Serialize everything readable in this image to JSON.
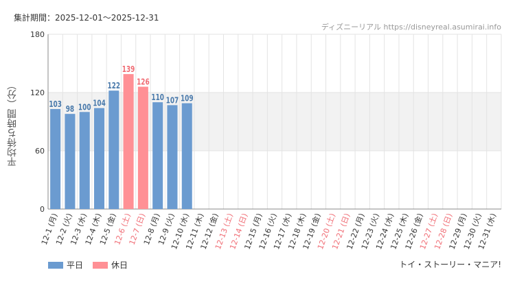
{
  "header": {
    "period": "集計期間：2025-12-01～2025-12-31",
    "watermark": "ディズニーリアル https://disneyreal.asumirai.info"
  },
  "footer": {
    "attraction": "トイ・ストーリー・マニア!"
  },
  "colors": {
    "weekday": "#6b9bd0",
    "holiday": "#ff9095",
    "weekday_label": "#4a7aab",
    "holiday_label": "#f06c74",
    "band": "#f2f2f2",
    "grid": "#e3e3e3",
    "axis": "#888888"
  },
  "chart_data": {
    "type": "bar",
    "ylabel": "平均待ち時間（分）",
    "ylim": [
      0,
      180
    ],
    "yticks": [
      0,
      60,
      120,
      180
    ],
    "categories": [
      "12-1 (月)",
      "12-2 (火)",
      "12-3 (水)",
      "12-4 (木)",
      "12-5 (金)",
      "12-6 (土)",
      "12-7 (日)",
      "12-8 (月)",
      "12-9 (火)",
      "12-10 (水)",
      "12-11 (木)",
      "12-12 (金)",
      "12-13 (土)",
      "12-14 (日)",
      "12-15 (月)",
      "12-16 (火)",
      "12-17 (水)",
      "12-18 (木)",
      "12-19 (金)",
      "12-20 (土)",
      "12-21 (日)",
      "12-22 (月)",
      "12-23 (火)",
      "12-24 (水)",
      "12-25 (木)",
      "12-26 (金)",
      "12-27 (土)",
      "12-28 (日)",
      "12-29 (月)",
      "12-30 (火)",
      "12-31 (水)"
    ],
    "holiday": [
      false,
      false,
      false,
      false,
      false,
      true,
      true,
      false,
      false,
      false,
      false,
      false,
      true,
      true,
      false,
      false,
      false,
      false,
      false,
      true,
      true,
      false,
      false,
      false,
      false,
      false,
      true,
      true,
      false,
      false,
      false
    ],
    "values": [
      103,
      98,
      100,
      104,
      122,
      139,
      126,
      110,
      107,
      109,
      null,
      null,
      null,
      null,
      null,
      null,
      null,
      null,
      null,
      null,
      null,
      null,
      null,
      null,
      null,
      null,
      null,
      null,
      null,
      null,
      null
    ],
    "legend": [
      {
        "label": "平日",
        "kind": "weekday"
      },
      {
        "label": "休日",
        "kind": "holiday"
      }
    ],
    "legend_position": "bottom-left",
    "grid": true,
    "shaded_band": [
      60,
      120
    ]
  }
}
